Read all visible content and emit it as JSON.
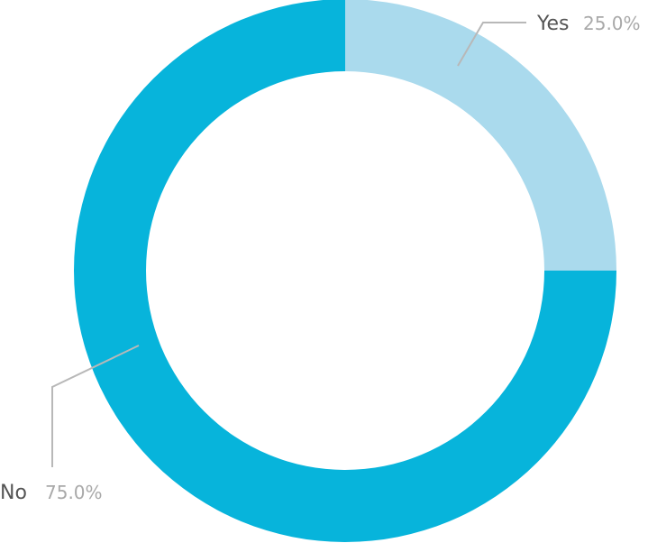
{
  "chart_data": {
    "type": "pie",
    "variant": "donut",
    "slices": [
      {
        "label": "Yes",
        "value": 25.0,
        "value_label": "25.0%",
        "color": "#aadaed"
      },
      {
        "label": "No",
        "value": 75.0,
        "value_label": "75.0%",
        "color": "#07b4db"
      }
    ],
    "title": "",
    "legend": "none"
  }
}
